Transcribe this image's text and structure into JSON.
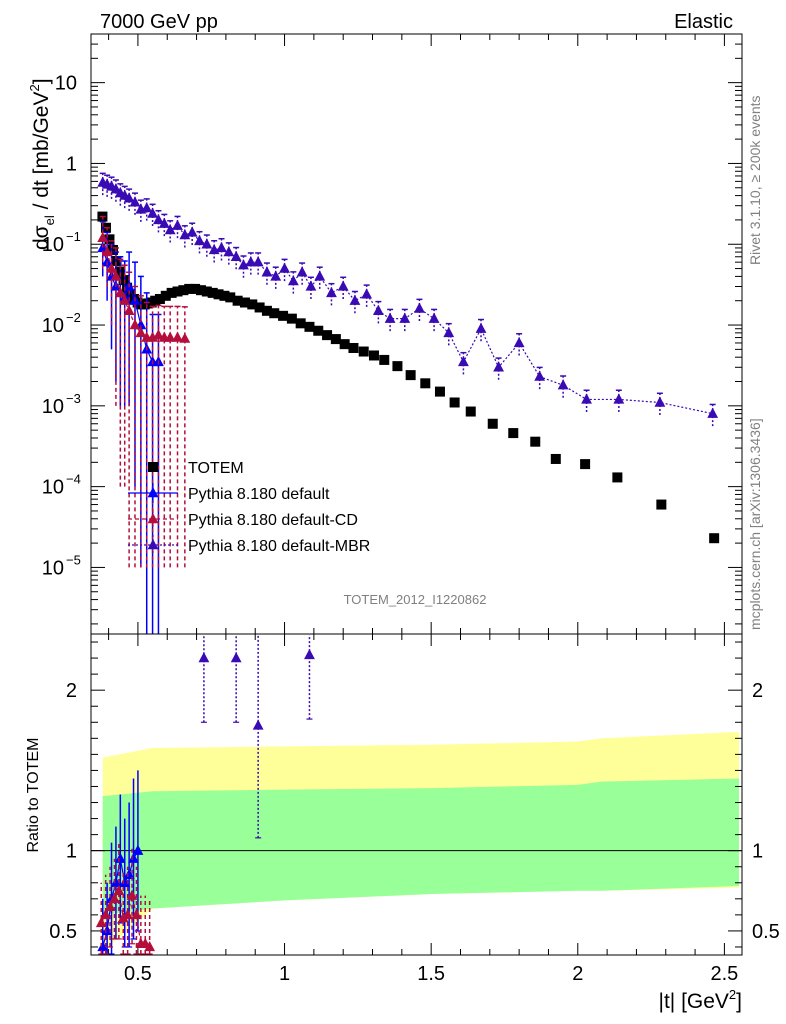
{
  "header": {
    "left": "7000 GeV pp",
    "right": "Elastic"
  },
  "side_text": {
    "rivet": "Rivet 3.1.10, ≥ 200k events",
    "mcplots": "mcplots.cern.ch [arXiv:1306.3436]"
  },
  "analysis_id": "TOTEM_2012_I1220862",
  "colors": {
    "totem": "#000000",
    "default": "#0000ff",
    "cd": "#b40f3c",
    "mbr": "#3a0ab4",
    "band_inner": "#99ff99",
    "band_outer": "#ffff99"
  },
  "chart_data": [
    {
      "type": "scatter",
      "ylabel_main": "dσ",
      "ylabel_sub": "el",
      "ylabel_rest": " / dt [mb/GeV",
      "ylabel_sup": "2",
      "ylabel_end": "]",
      "yscale": "log",
      "xlim": [
        0.34,
        2.56
      ],
      "ylim": [
        1.5e-06,
        40
      ],
      "yticks": [
        {
          "v": 1e-05,
          "base": "10",
          "exp": "−5"
        },
        {
          "v": 0.0001,
          "base": "10",
          "exp": "−4"
        },
        {
          "v": 0.001,
          "base": "10",
          "exp": "−3"
        },
        {
          "v": 0.01,
          "base": "10",
          "exp": "−2"
        },
        {
          "v": 0.1,
          "base": "10",
          "exp": "−1"
        },
        {
          "v": 1,
          "base": "1",
          "exp": ""
        },
        {
          "v": 10,
          "base": "10",
          "exp": ""
        }
      ],
      "legend": [
        {
          "label": "TOTEM",
          "marker": "square",
          "color": "#000000",
          "dash": "none"
        },
        {
          "label": "Pythia 8.180 default",
          "marker": "triangle",
          "color": "#0000ff",
          "dash": "none"
        },
        {
          "label": "Pythia 8.180 default-CD",
          "marker": "triangle",
          "color": "#b40f3c",
          "dash": "4,3"
        },
        {
          "label": "Pythia 8.180 default-MBR",
          "marker": "triangle",
          "color": "#3a0ab4",
          "dash": "2,2"
        }
      ],
      "series": [
        {
          "name": "TOTEM",
          "color": "#000000",
          "x": [
            0.379,
            0.391,
            0.403,
            0.415,
            0.427,
            0.439,
            0.451,
            0.463,
            0.475,
            0.487,
            0.499,
            0.511,
            0.523,
            0.535,
            0.547,
            0.559,
            0.575,
            0.595,
            0.615,
            0.635,
            0.655,
            0.675,
            0.695,
            0.715,
            0.735,
            0.755,
            0.775,
            0.795,
            0.815,
            0.84,
            0.865,
            0.89,
            0.915,
            0.94,
            0.965,
            0.995,
            1.025,
            1.055,
            1.085,
            1.115,
            1.145,
            1.175,
            1.205,
            1.235,
            1.27,
            1.305,
            1.34,
            1.385,
            1.43,
            1.48,
            1.53,
            1.58,
            1.635,
            1.71,
            1.78,
            1.855,
            1.925,
            2.025,
            2.135,
            2.285,
            2.465
          ],
          "y": [
            0.22,
            0.16,
            0.115,
            0.085,
            0.062,
            0.046,
            0.036,
            0.029,
            0.024,
            0.021,
            0.019,
            0.018,
            0.018,
            0.0185,
            0.019,
            0.02,
            0.021,
            0.023,
            0.025,
            0.026,
            0.027,
            0.028,
            0.028,
            0.027,
            0.026,
            0.025,
            0.024,
            0.023,
            0.022,
            0.02,
            0.019,
            0.018,
            0.0165,
            0.015,
            0.014,
            0.013,
            0.012,
            0.0105,
            0.0095,
            0.0085,
            0.0075,
            0.0067,
            0.0058,
            0.0052,
            0.0047,
            0.0042,
            0.0037,
            0.0031,
            0.0024,
            0.0019,
            0.0015,
            0.0011,
            0.00085,
            0.0006,
            0.00046,
            0.00036,
            0.00022,
            0.00019,
            0.00013,
            6e-05,
            2.3e-05
          ]
        },
        {
          "name": "Pythia 8.180 default",
          "color": "#0000ff",
          "x": [
            0.38,
            0.395,
            0.41,
            0.425,
            0.44,
            0.455,
            0.47,
            0.49,
            0.51,
            0.53,
            0.55,
            0.57
          ],
          "y": [
            0.09,
            0.06,
            0.04,
            0.03,
            0.025,
            0.022,
            0.03,
            0.02,
            0.01,
            0.005,
            0.0035,
            0.0035
          ],
          "err_lo": [
            0.05,
            0.04,
            0.035,
            0.028,
            0.024,
            0.021,
            0.029,
            0.0199,
            0.00999,
            0.005,
            0.0035,
            0.0035
          ],
          "err_hi": [
            0.1,
            0.08,
            0.06,
            0.05,
            0.045,
            0.04,
            0.05,
            0.04,
            0.03,
            0.02,
            0.01,
            0.01
          ]
        },
        {
          "name": "Pythia 8.180 default-CD",
          "color": "#b40f3c",
          "x": [
            0.38,
            0.395,
            0.41,
            0.425,
            0.44,
            0.455,
            0.47,
            0.49,
            0.51,
            0.53,
            0.55,
            0.57,
            0.59,
            0.61,
            0.635,
            0.66
          ],
          "y": [
            0.12,
            0.08,
            0.05,
            0.04,
            0.025,
            0.02,
            0.015,
            0.01,
            0.008,
            0.007,
            0.007,
            0.0075,
            0.007,
            0.007,
            0.007,
            0.0068
          ],
          "err_lo": [
            0.07,
            0.05,
            0.04,
            0.039,
            0.0249,
            0.0199,
            0.01499,
            0.00999,
            0.00799,
            0.00699,
            0.00699,
            0.00749,
            0.00699,
            0.00699,
            0.00699,
            0.00679
          ],
          "err_hi": [
            0.1,
            0.08,
            0.06,
            0.05,
            0.04,
            0.035,
            0.03,
            0.02,
            0.015,
            0.012,
            0.01,
            0.01,
            0.01,
            0.01,
            0.01,
            0.01
          ]
        },
        {
          "name": "Pythia 8.180 default-MBR",
          "color": "#3a0ab4",
          "x": [
            0.38,
            0.395,
            0.41,
            0.425,
            0.44,
            0.455,
            0.47,
            0.49,
            0.51,
            0.53,
            0.55,
            0.57,
            0.59,
            0.61,
            0.635,
            0.66,
            0.685,
            0.71,
            0.735,
            0.76,
            0.785,
            0.81,
            0.835,
            0.86,
            0.885,
            0.91,
            0.94,
            0.97,
            1.0,
            1.03,
            1.06,
            1.09,
            1.12,
            1.16,
            1.2,
            1.24,
            1.28,
            1.32,
            1.36,
            1.41,
            1.46,
            1.51,
            1.56,
            1.61,
            1.67,
            1.73,
            1.8,
            1.87,
            1.95,
            2.03,
            2.14,
            2.28,
            2.46
          ],
          "y": [
            0.58,
            0.55,
            0.52,
            0.48,
            0.43,
            0.4,
            0.37,
            0.33,
            0.27,
            0.28,
            0.24,
            0.2,
            0.18,
            0.15,
            0.17,
            0.13,
            0.14,
            0.11,
            0.1,
            0.085,
            0.09,
            0.08,
            0.07,
            0.055,
            0.06,
            0.06,
            0.045,
            0.04,
            0.05,
            0.035,
            0.045,
            0.03,
            0.04,
            0.025,
            0.03,
            0.02,
            0.024,
            0.015,
            0.012,
            0.012,
            0.016,
            0.012,
            0.008,
            0.0035,
            0.009,
            0.003,
            0.006,
            0.0023,
            0.0018,
            0.0012,
            0.0012,
            0.0011,
            0.0008
          ],
          "err_rel_lo": 0.3,
          "err_rel_hi": 0.3
        }
      ]
    },
    {
      "type": "scatter",
      "ylabel": "Ratio to TOTEM",
      "yscale": "linear",
      "xlabel_main": "|t| [GeV",
      "xlabel_sup": "2",
      "xlabel_end": "]",
      "xlim": [
        0.34,
        2.56
      ],
      "ylim": [
        0.35,
        2.35
      ],
      "xticks": [
        {
          "v": 0.5,
          "label": "0.5"
        },
        {
          "v": 1,
          "label": "1"
        },
        {
          "v": 1.5,
          "label": "1.5"
        },
        {
          "v": 2,
          "label": "2"
        },
        {
          "v": 2.5,
          "label": "2.5"
        }
      ],
      "yticks": [
        {
          "v": 0.5,
          "label": "0.5"
        },
        {
          "v": 1,
          "label": "1"
        },
        {
          "v": 2,
          "label": "2"
        }
      ],
      "reference": 1,
      "band_x": [
        0.38,
        0.55,
        1.0,
        1.5,
        2.0,
        2.08,
        2.55
      ],
      "band_outer_lo": [
        0.37,
        0.64,
        0.69,
        0.73,
        0.75,
        0.75,
        0.77
      ],
      "band_outer_hi": [
        1.58,
        1.64,
        1.65,
        1.66,
        1.68,
        1.7,
        1.74
      ],
      "band_inner_lo": [
        0.6,
        0.64,
        0.69,
        0.73,
        0.75,
        0.75,
        0.78
      ],
      "band_inner_hi": [
        1.34,
        1.37,
        1.38,
        1.39,
        1.41,
        1.43,
        1.45
      ],
      "series": [
        {
          "name": "Pythia 8.180 default",
          "color": "#0000ff",
          "x": [
            0.38,
            0.395,
            0.41,
            0.425,
            0.44,
            0.455,
            0.47,
            0.485,
            0.5
          ],
          "y": [
            0.4,
            0.5,
            0.7,
            0.8,
            0.95,
            0.8,
            0.85,
            0.95,
            1.0
          ],
          "err": [
            0.3,
            0.3,
            0.35,
            0.35,
            0.4,
            0.4,
            0.45,
            0.5,
            0.5
          ]
        },
        {
          "name": "Pythia 8.180 default-CD",
          "color": "#b40f3c",
          "x": [
            0.375,
            0.39,
            0.405,
            0.42,
            0.435,
            0.45,
            0.465,
            0.48,
            0.495,
            0.51,
            0.525,
            0.54
          ],
          "y": [
            0.55,
            0.6,
            0.65,
            0.7,
            0.75,
            0.58,
            0.6,
            0.72,
            0.6,
            0.42,
            0.42,
            0.4
          ],
          "err": [
            0.25,
            0.25,
            0.25,
            0.25,
            0.3,
            0.3,
            0.3,
            0.3,
            0.3,
            0.3,
            0.3,
            0.3
          ]
        },
        {
          "name": "Pythia 8.180 default-MBR",
          "color": "#3a0ab4",
          "x": [
            0.725,
            0.835,
            0.91,
            1.085
          ],
          "y": [
            2.2,
            2.2,
            1.78,
            2.22
          ],
          "err": [
            0.4,
            0.4,
            0.7,
            0.4
          ]
        }
      ]
    }
  ]
}
